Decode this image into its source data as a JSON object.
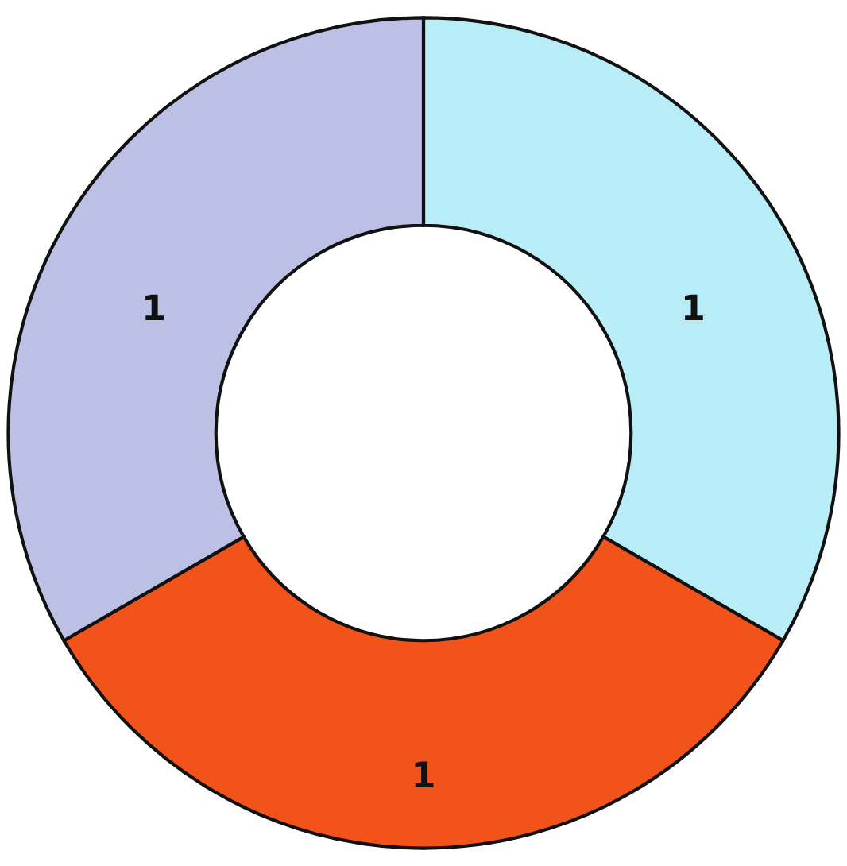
{
  "chart_data": {
    "type": "donut",
    "categories": [
      null,
      null,
      null
    ],
    "values": [
      1,
      1,
      1
    ],
    "colors": [
      "#b8ecf6",
      "#f2531a",
      "#bcc0e4"
    ],
    "data_labels": true
  }
}
